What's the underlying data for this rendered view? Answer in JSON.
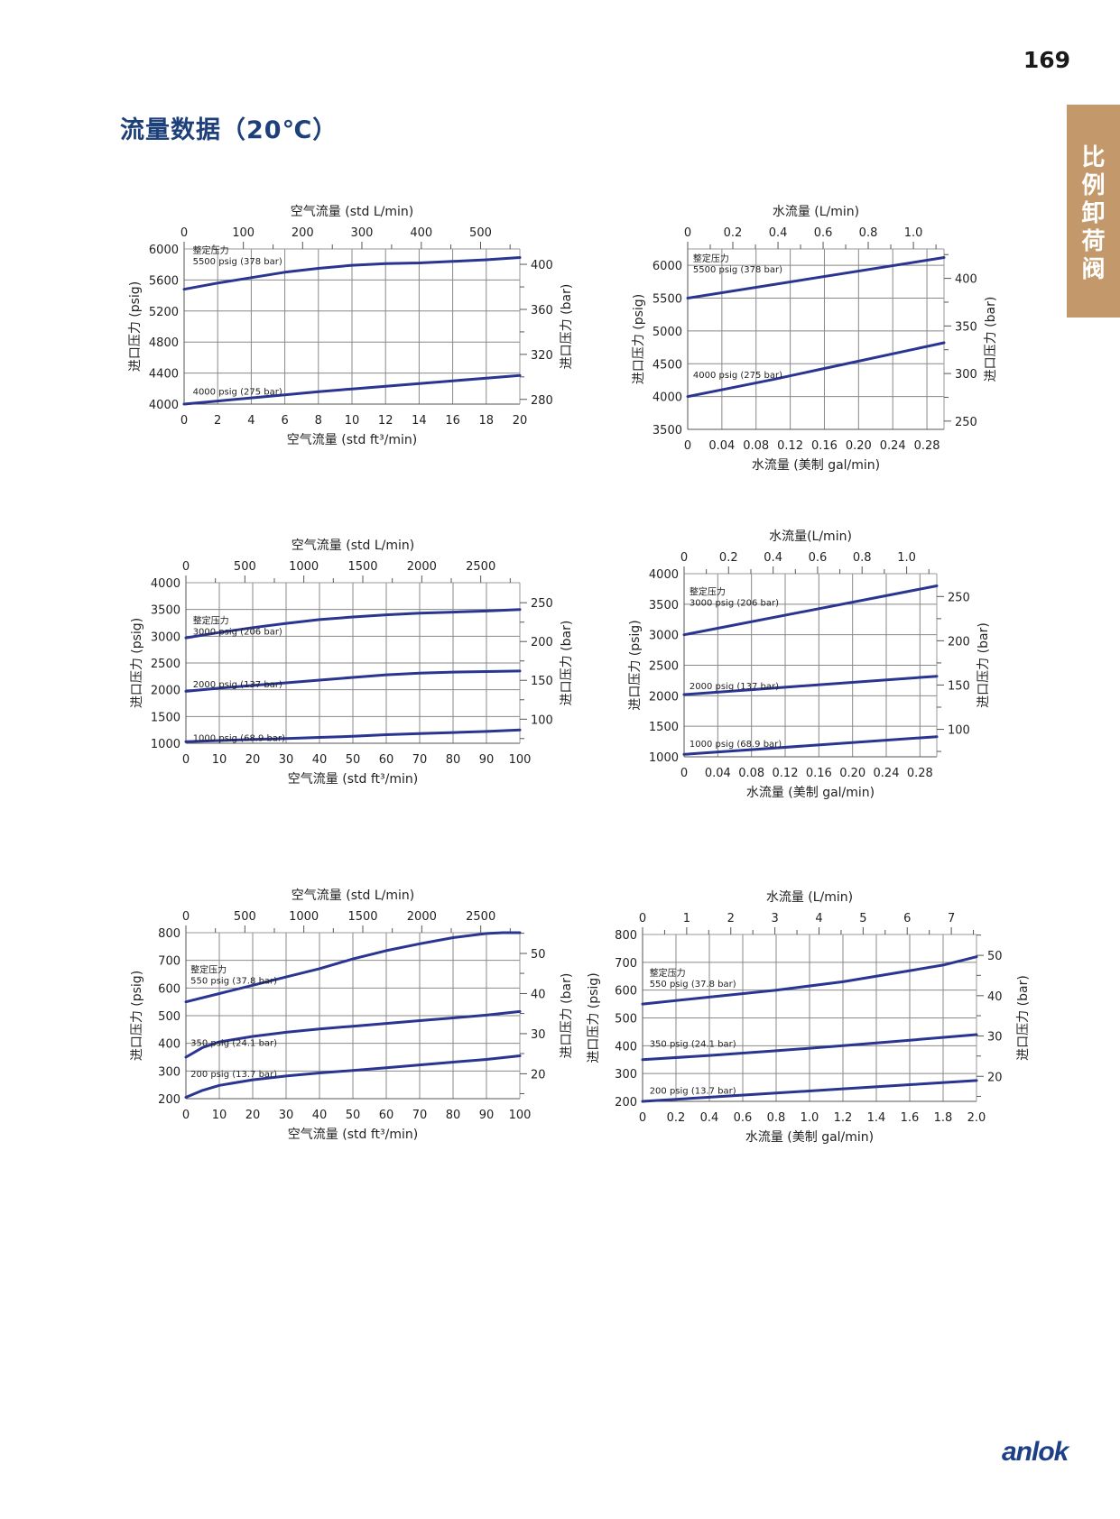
{
  "page": {
    "number": "169",
    "title": "流量数据（20℃）",
    "side_tab": "比\n例\n卸\n荷\n阀",
    "brand": "anlok"
  },
  "colors": {
    "curve": "#2a3591",
    "grid": "#888888",
    "title": "#1d3f7a",
    "side_tab": "#c3996b",
    "brand": "#1d3f8a"
  },
  "chart_data": [
    {
      "type": "line",
      "id": "chart1",
      "ylabel_left": "进口压力 (psig)",
      "ylabel_right": "进口压力 (bar)",
      "xlabel_top": "空气流量 (std L/min)",
      "xlabel_bottom": "空气流量 (std ft³/min)",
      "xlim": [
        0,
        20
      ],
      "ylim": [
        4000,
        6000
      ],
      "x_ticks": [
        "0",
        "2",
        "4",
        "6",
        "8",
        "10",
        "12",
        "14",
        "16",
        "18",
        "20"
      ],
      "x_tick_values": [
        0,
        2,
        4,
        6,
        8,
        10,
        12,
        14,
        16,
        18,
        20
      ],
      "x_grid": [
        0,
        2,
        4,
        6,
        8,
        10,
        12,
        14,
        16,
        18,
        20
      ],
      "y_ticks": [
        "4000",
        "4400",
        "4800",
        "5200",
        "5600",
        "6000"
      ],
      "y_tick_values": [
        4000,
        4400,
        4800,
        5200,
        5600,
        6000
      ],
      "y_grid": [
        4000,
        4400,
        4800,
        5200,
        5600,
        6000
      ],
      "top_ticks": [
        "0",
        "100",
        "200",
        "300",
        "400",
        "500"
      ],
      "top_tick_values": [
        0,
        3.53,
        7.06,
        10.59,
        14.13,
        17.66
      ],
      "top_minor": [
        1.77,
        5.3,
        8.83,
        12.36,
        15.89,
        19.42
      ],
      "right_ticks": [
        "280",
        "320",
        "360",
        "400"
      ],
      "right_tick_values": [
        4061,
        4641,
        5221,
        5802
      ],
      "right_minor": [
        4351,
        4931,
        5511
      ],
      "label_set": "整定压力",
      "series": [
        {
          "name": "5500 psig (378 bar)",
          "x": [
            0,
            2,
            4,
            6,
            8,
            10,
            12,
            14,
            16,
            18,
            20
          ],
          "y": [
            5480,
            5560,
            5630,
            5700,
            5750,
            5790,
            5810,
            5820,
            5840,
            5860,
            5890
          ]
        },
        {
          "name": "4000 psig (275 bar)",
          "x": [
            0,
            2,
            4,
            6,
            8,
            10,
            12,
            14,
            16,
            18,
            20
          ],
          "y": [
            4000,
            4040,
            4080,
            4120,
            4160,
            4195,
            4230,
            4265,
            4300,
            4335,
            4370
          ]
        }
      ],
      "series_labels": [
        {
          "show_set": true,
          "x": 0.3,
          "y": 5920
        },
        {
          "show_set": false,
          "x": 0.3,
          "y": 4170
        }
      ]
    },
    {
      "type": "line",
      "id": "chart2",
      "ylabel_left": "进口压力 (psig)",
      "ylabel_right": "进口压力 (bar)",
      "xlabel_top": "水流量 (L/min)",
      "xlabel_bottom": "水流量 (美制 gal/min)",
      "xlim": [
        0,
        0.3
      ],
      "ylim": [
        3500,
        6250
      ],
      "x_ticks": [
        "0",
        "0.04",
        "0.08",
        "0.12",
        "0.16",
        "0.20",
        "0.24",
        "0.28"
      ],
      "x_tick_values": [
        0,
        0.04,
        0.08,
        0.12,
        0.16,
        0.2,
        0.24,
        0.28
      ],
      "x_grid": [
        0.04,
        0.08,
        0.12,
        0.16,
        0.2,
        0.24,
        0.28
      ],
      "y_ticks": [
        "3500",
        "4000",
        "4500",
        "5000",
        "5500",
        "6000"
      ],
      "y_tick_values": [
        3500,
        4000,
        4500,
        5000,
        5500,
        6000
      ],
      "y_grid": [
        4000,
        4500,
        5000,
        5500,
        6000
      ],
      "top_ticks": [
        "0",
        "0.2",
        "0.4",
        "0.6",
        "0.8",
        "1.0"
      ],
      "top_tick_values": [
        0,
        0.0528,
        0.1057,
        0.1585,
        0.2113,
        0.2642
      ],
      "top_minor": [
        0.0264,
        0.0793,
        0.1321,
        0.1849,
        0.2377,
        0.2906
      ],
      "right_ticks": [
        "250",
        "300",
        "350",
        "400"
      ],
      "right_tick_values": [
        3626,
        4351,
        5076,
        5802
      ],
      "right_minor": [
        3989,
        4714,
        5439,
        6164
      ],
      "label_set": "整定压力",
      "series": [
        {
          "name": "5500 psig (378 bar)",
          "x": [
            0,
            0.3
          ],
          "y": [
            5500,
            6120
          ]
        },
        {
          "name": "4000 psig (275 bar)",
          "x": [
            0,
            0.05,
            0.1,
            0.15,
            0.2,
            0.25,
            0.3
          ],
          "y": [
            4000,
            4130,
            4260,
            4400,
            4540,
            4680,
            4820
          ]
        }
      ],
      "series_labels": [
        {
          "show_set": true,
          "x": 0.002,
          "y": 6030
        },
        {
          "show_set": false,
          "x": 0.002,
          "y": 4340
        }
      ]
    },
    {
      "type": "line",
      "id": "chart3",
      "ylabel_left": "进口压力 (psig)",
      "ylabel_right": "进口压力 (bar)",
      "xlabel_top": "空气流量 (std L/min)",
      "xlabel_bottom": "空气流量 (std ft³/min)",
      "xlim": [
        0,
        100
      ],
      "ylim": [
        1000,
        4000
      ],
      "x_ticks": [
        "0",
        "10",
        "20",
        "30",
        "40",
        "50",
        "60",
        "70",
        "80",
        "90",
        "100"
      ],
      "x_tick_values": [
        0,
        10,
        20,
        30,
        40,
        50,
        60,
        70,
        80,
        90,
        100
      ],
      "x_grid": [
        10,
        20,
        30,
        40,
        50,
        60,
        70,
        80,
        90
      ],
      "y_ticks": [
        "1000",
        "1500",
        "2000",
        "2500",
        "3000",
        "3500",
        "4000"
      ],
      "y_tick_values": [
        1000,
        1500,
        2000,
        2500,
        3000,
        3500,
        4000
      ],
      "y_grid": [
        1000,
        1500,
        2000,
        2500,
        3000,
        3500,
        4000
      ],
      "top_ticks": [
        "0",
        "500",
        "1000",
        "1500",
        "2000",
        "2500"
      ],
      "top_tick_values": [
        0,
        17.66,
        35.31,
        52.97,
        70.63,
        88.29
      ],
      "top_minor": [
        8.83,
        26.49,
        44.14,
        61.8,
        79.46,
        97.12
      ],
      "right_ticks": [
        "100",
        "150",
        "200",
        "250"
      ],
      "right_tick_values": [
        1450,
        2176,
        2901,
        3626
      ],
      "right_minor": [
        1088,
        1813,
        2538,
        3263
      ],
      "label_set": "整定压力",
      "series": [
        {
          "name": "3000 psig (206 bar)",
          "x": [
            0,
            10,
            20,
            30,
            40,
            50,
            60,
            70,
            80,
            90,
            100
          ],
          "y": [
            2970,
            3070,
            3160,
            3240,
            3310,
            3360,
            3400,
            3430,
            3450,
            3470,
            3500
          ]
        },
        {
          "name": "2000 psig (137 bar)",
          "x": [
            0,
            10,
            20,
            30,
            40,
            50,
            60,
            70,
            80,
            90,
            100
          ],
          "y": [
            1970,
            2030,
            2080,
            2130,
            2180,
            2230,
            2280,
            2310,
            2330,
            2340,
            2350
          ]
        },
        {
          "name": "1000 psig (68.9 bar)",
          "x": [
            0,
            10,
            20,
            30,
            40,
            50,
            60,
            70,
            80,
            90,
            100
          ],
          "y": [
            1030,
            1050,
            1070,
            1090,
            1110,
            1130,
            1160,
            1180,
            1200,
            1220,
            1250
          ]
        }
      ],
      "series_labels": [
        {
          "show_set": true,
          "x": 1,
          "y": 3200
        },
        {
          "show_set": false,
          "x": 1,
          "y": 2110
        },
        {
          "show_set": false,
          "x": 1,
          "y": 1110
        }
      ]
    },
    {
      "type": "line",
      "id": "chart4",
      "ylabel_left": "进口压力 (psig)",
      "ylabel_right": "进口压力 (bar)",
      "xlabel_top": "水流量(L/min)",
      "xlabel_bottom": "水流量 (美制 gal/min)",
      "xlim": [
        0,
        0.3
      ],
      "ylim": [
        1000,
        4000
      ],
      "x_ticks": [
        "0",
        "0.04",
        "0.08",
        "0.12",
        "0.16",
        "0.20",
        "0.24",
        "0.28"
      ],
      "x_tick_values": [
        0,
        0.04,
        0.08,
        0.12,
        0.16,
        0.2,
        0.24,
        0.28
      ],
      "x_grid": [
        0.04,
        0.08,
        0.12,
        0.16,
        0.2,
        0.24,
        0.28
      ],
      "y_ticks": [
        "1000",
        "1500",
        "2000",
        "2500",
        "3000",
        "3500",
        "4000"
      ],
      "y_tick_values": [
        1000,
        1500,
        2000,
        2500,
        3000,
        3500,
        4000
      ],
      "y_grid": [
        1500,
        2000,
        2500,
        3000,
        3500,
        4000
      ],
      "top_ticks": [
        "0",
        "0.2",
        "0.4",
        "0.6",
        "0.8",
        "1.0"
      ],
      "top_tick_values": [
        0,
        0.0528,
        0.1057,
        0.1585,
        0.2113,
        0.2642
      ],
      "top_minor": [
        0.0264,
        0.0793,
        0.1321,
        0.1849,
        0.2377,
        0.2906
      ],
      "right_ticks": [
        "100",
        "150",
        "200",
        "250"
      ],
      "right_tick_values": [
        1450,
        2176,
        2901,
        3626
      ],
      "right_minor": [
        1088,
        1813,
        2538,
        3263
      ],
      "label_set": "整定压力",
      "series": [
        {
          "name": "3000 psig (206 bar)",
          "x": [
            0,
            0.3
          ],
          "y": [
            3000,
            3800
          ]
        },
        {
          "name": "2000 psig (137 bar)",
          "x": [
            0,
            0.3
          ],
          "y": [
            2020,
            2320
          ]
        },
        {
          "name": "1000 psig (68.9 bar)",
          "x": [
            0,
            0.3
          ],
          "y": [
            1040,
            1330
          ]
        }
      ],
      "series_labels": [
        {
          "show_set": true,
          "x": 0.002,
          "y": 3620
        },
        {
          "show_set": false,
          "x": 0.002,
          "y": 2170
        },
        {
          "show_set": false,
          "x": 0.002,
          "y": 1220
        }
      ]
    },
    {
      "type": "line",
      "id": "chart5",
      "ylabel_left": "进口压力 (psig)",
      "ylabel_right": "进口压力 (bar)",
      "xlabel_top": "空气流量 (std L/min)",
      "xlabel_bottom": "空气流量 (std ft³/min)",
      "xlim": [
        0,
        100
      ],
      "ylim": [
        200,
        800
      ],
      "x_ticks": [
        "0",
        "10",
        "20",
        "30",
        "40",
        "50",
        "60",
        "70",
        "80",
        "90",
        "100"
      ],
      "x_tick_values": [
        0,
        10,
        20,
        30,
        40,
        50,
        60,
        70,
        80,
        90,
        100
      ],
      "x_grid": [
        10,
        20,
        30,
        40,
        50,
        60,
        70,
        80,
        90
      ],
      "y_ticks": [
        "200",
        "300",
        "400",
        "500",
        "600",
        "700",
        "800"
      ],
      "y_tick_values": [
        200,
        300,
        400,
        500,
        600,
        700,
        800
      ],
      "y_grid": [
        200,
        300,
        400,
        500,
        600,
        700,
        800
      ],
      "top_ticks": [
        "0",
        "500",
        "1000",
        "1500",
        "2000",
        "2500"
      ],
      "top_tick_values": [
        0,
        17.66,
        35.31,
        52.97,
        70.63,
        88.29
      ],
      "top_minor": [
        8.83,
        26.49,
        44.14,
        61.8,
        79.46,
        97.12
      ],
      "right_ticks": [
        "20",
        "30",
        "40",
        "50"
      ],
      "right_tick_values": [
        290,
        435,
        580,
        725
      ],
      "right_minor": [
        218,
        363,
        508,
        653,
        798
      ],
      "label_set": "整定压力",
      "series": [
        {
          "name": "550 psig (37.8 bar)",
          "x": [
            0,
            10,
            20,
            30,
            40,
            50,
            60,
            70,
            80,
            90,
            95,
            100
          ],
          "y": [
            550,
            580,
            610,
            640,
            670,
            705,
            735,
            760,
            782,
            797,
            800,
            800
          ]
        },
        {
          "name": "350 psig (24.1 bar)",
          "x": [
            0,
            5,
            10,
            20,
            30,
            40,
            50,
            60,
            70,
            80,
            90,
            100
          ],
          "y": [
            350,
            385,
            405,
            425,
            440,
            452,
            462,
            472,
            482,
            492,
            502,
            515
          ]
        },
        {
          "name": "200 psig (13.7 bar)",
          "x": [
            0,
            5,
            10,
            20,
            30,
            40,
            50,
            60,
            70,
            80,
            90,
            100
          ],
          "y": [
            205,
            230,
            248,
            268,
            282,
            293,
            302,
            312,
            322,
            332,
            342,
            355
          ]
        }
      ],
      "series_labels": [
        {
          "show_set": true,
          "x": 0.3,
          "y": 648
        },
        {
          "show_set": false,
          "x": 0.3,
          "y": 403
        },
        {
          "show_set": false,
          "x": 0.3,
          "y": 291
        }
      ]
    },
    {
      "type": "line",
      "id": "chart6",
      "ylabel_left": "进口压力 (psig)",
      "ylabel_right": "进口压力 (bar)",
      "xlabel_top": "水流量 (L/min)",
      "xlabel_bottom": "水流量 (美制 gal/min)",
      "xlim": [
        0,
        2.0
      ],
      "ylim": [
        200,
        800
      ],
      "x_ticks": [
        "0",
        "0.2",
        "0.4",
        "0.6",
        "0.8",
        "1.0",
        "1.2",
        "1.4",
        "1.6",
        "1.8",
        "2.0"
      ],
      "x_tick_values": [
        0,
        0.2,
        0.4,
        0.6,
        0.8,
        1.0,
        1.2,
        1.4,
        1.6,
        1.8,
        2.0
      ],
      "x_grid": [
        0.2,
        0.4,
        0.6,
        0.8,
        1.0,
        1.2,
        1.4,
        1.6,
        1.8
      ],
      "y_ticks": [
        "200",
        "300",
        "400",
        "500",
        "600",
        "700",
        "800"
      ],
      "y_tick_values": [
        200,
        300,
        400,
        500,
        600,
        700,
        800
      ],
      "y_grid": [
        200,
        300,
        400,
        500,
        600,
        700,
        800
      ],
      "top_ticks": [
        "0",
        "1",
        "2",
        "3",
        "4",
        "5",
        "6",
        "7"
      ],
      "top_tick_values": [
        0,
        0.2642,
        0.5283,
        0.7925,
        1.0567,
        1.3209,
        1.585,
        1.8492
      ],
      "top_minor": [
        0.1321,
        0.3962,
        0.6604,
        0.9246,
        1.1888,
        1.4529,
        1.7171,
        1.9813
      ],
      "right_ticks": [
        "20",
        "30",
        "40",
        "50"
      ],
      "right_tick_values": [
        290,
        435,
        580,
        725
      ],
      "right_minor": [
        218,
        363,
        508,
        653,
        798
      ],
      "label_set": "整定压力",
      "series": [
        {
          "name": "550 psig (37.8 bar)",
          "x": [
            0,
            0.4,
            0.8,
            1.2,
            1.6,
            1.8,
            2.0
          ],
          "y": [
            550,
            575,
            600,
            630,
            670,
            690,
            720
          ]
        },
        {
          "name": "350 psig (24.1 bar)",
          "x": [
            0,
            0.4,
            0.8,
            1.2,
            1.6,
            2.0
          ],
          "y": [
            350,
            365,
            382,
            400,
            420,
            440
          ]
        },
        {
          "name": "200 psig (13.7 bar)",
          "x": [
            0,
            0.4,
            0.8,
            1.2,
            1.6,
            2.0
          ],
          "y": [
            200,
            215,
            230,
            245,
            260,
            275
          ]
        }
      ],
      "series_labels": [
        {
          "show_set": true,
          "x": 0.02,
          "y": 645
        },
        {
          "show_set": false,
          "x": 0.02,
          "y": 410
        },
        {
          "show_set": false,
          "x": 0.02,
          "y": 240
        }
      ]
    }
  ]
}
